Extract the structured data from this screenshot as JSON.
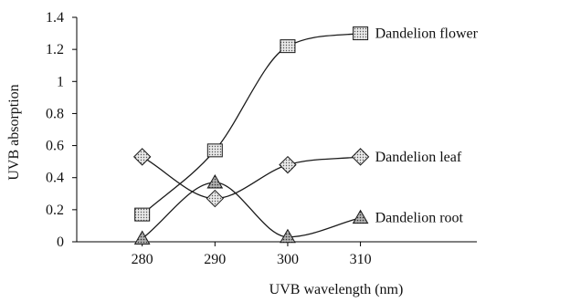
{
  "chart_data": {
    "type": "line",
    "title": "",
    "xlabel": "UVB wavelength (nm)",
    "ylabel": "UVB absorption",
    "x": [
      280,
      290,
      300,
      310
    ],
    "xlim": [
      271,
      326
    ],
    "ylim": [
      0,
      1.4
    ],
    "yticks": [
      0,
      0.2,
      0.4,
      0.6,
      0.8,
      1,
      1.2,
      1.4
    ],
    "ytick_labels": [
      "0",
      "0.2",
      "0.4",
      "0.6",
      "0.8",
      "1",
      "1.2",
      "1.4"
    ],
    "xticks": [
      280,
      290,
      300,
      310
    ],
    "xtick_labels": [
      "280",
      "290",
      "300",
      "310"
    ],
    "grid": false,
    "smooth": true,
    "series": [
      {
        "name": "Dandelion flower",
        "marker": "square",
        "values": [
          0.17,
          0.57,
          1.22,
          1.3
        ],
        "marker_fill": "#d4d4d4"
      },
      {
        "name": "Dandelion leaf",
        "marker": "diamond",
        "values": [
          0.53,
          0.27,
          0.48,
          0.53
        ],
        "marker_fill": "#d4d4d4"
      },
      {
        "name": "Dandelion root",
        "marker": "triangle",
        "values": [
          0.02,
          0.37,
          0.03,
          0.15
        ],
        "marker_fill": "#9a9a9a"
      }
    ]
  },
  "colors": {
    "line": "#1a1a1a",
    "axis": "#000000"
  }
}
